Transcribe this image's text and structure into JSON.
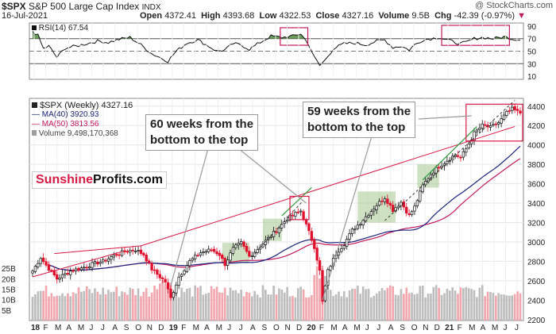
{
  "header": {
    "symbol": "$SPX",
    "name": "S&P 500 Large Cap Index",
    "exchange": "INDX",
    "date": "16-Jul-2021",
    "open_label": "Open",
    "open": "4372.41",
    "high_label": "High",
    "high": "4393.68",
    "low_label": "Low",
    "low": "4322.53",
    "close_label": "Close",
    "close": "4327.16",
    "volume_label": "Volume",
    "volume": "9.5B",
    "chg_label": "Chg",
    "chg": "-42.39 (-0.97%)",
    "watermark": "@ StockCharts.com"
  },
  "rsi": {
    "label": "RSI(14) 67.54",
    "levels": [
      "90",
      "70",
      "50",
      "30",
      "10"
    ]
  },
  "legend": {
    "main": "$SPX (Weekly) 4327.16",
    "ma40": "MA(40) 3920.93",
    "ma50": "MA(50) 3813.56",
    "volume": "Volume 9,498,170,368"
  },
  "logo": {
    "part1": "Sunshine",
    "part2": "Profits.com"
  },
  "callouts": {
    "left_line1": "60 weeks from the",
    "left_line2": "bottom to the top",
    "right_line1": "59 weeks from the",
    "right_line2": "bottom to the top"
  },
  "colors": {
    "ma40": "#1a237e",
    "ma50": "#c2185b",
    "trend": "#d81b45",
    "up_trend": "#2e9e3e",
    "highlight": "#a5c98f",
    "volume_up": "#bdbdbd",
    "volume_down": "#f2a6ae",
    "candle_down": "#e0102c"
  },
  "chart_data": {
    "type": "line",
    "title": "$SPX S&P 500 Large Cap Index INDX",
    "period": "Weekly",
    "x_tick_labels": [
      "18",
      "F",
      "M",
      "A",
      "M",
      "J",
      "J",
      "A",
      "S",
      "O",
      "N",
      "D",
      "19",
      "F",
      "M",
      "A",
      "M",
      "J",
      "J",
      "A",
      "S",
      "O",
      "N",
      "D",
      "20",
      "F",
      "M",
      "A",
      "M",
      "J",
      "J",
      "A",
      "S",
      "O",
      "N",
      "D",
      "21",
      "F",
      "M",
      "A",
      "M",
      "J",
      "J"
    ],
    "y_ticks": [
      "4400",
      "4200",
      "4000",
      "3800",
      "3600",
      "3400",
      "3200",
      "3000",
      "2800",
      "2600",
      "2400",
      "2200"
    ],
    "ylim": [
      2190,
      4480
    ],
    "volume_ticks": [
      "25B",
      "20B",
      "15B",
      "10B",
      "5B"
    ],
    "anchors_price": [
      [
        0,
        2700
      ],
      [
        3,
        2840
      ],
      [
        5,
        2760
      ],
      [
        9,
        2620
      ],
      [
        14,
        2700
      ],
      [
        18,
        2730
      ],
      [
        23,
        2780
      ],
      [
        26,
        2800
      ],
      [
        30,
        2860
      ],
      [
        34,
        2900
      ],
      [
        38,
        2920
      ],
      [
        41,
        2870
      ],
      [
        44,
        2720
      ],
      [
        47,
        2640
      ],
      [
        49,
        2590
      ],
      [
        51,
        2420
      ],
      [
        54,
        2640
      ],
      [
        58,
        2800
      ],
      [
        62,
        2890
      ],
      [
        66,
        2920
      ],
      [
        69,
        2870
      ],
      [
        71,
        2770
      ],
      [
        74,
        2930
      ],
      [
        77,
        2990
      ],
      [
        80,
        2850
      ],
      [
        82,
        2900
      ],
      [
        86,
        3010
      ],
      [
        90,
        3120
      ],
      [
        94,
        3240
      ],
      [
        97,
        3290
      ],
      [
        99,
        3320
      ],
      [
        102,
        3100
      ],
      [
        104,
        2950
      ],
      [
        106,
        2700
      ],
      [
        107,
        2380
      ],
      [
        109,
        2700
      ],
      [
        112,
        2880
      ],
      [
        115,
        2980
      ],
      [
        118,
        3120
      ],
      [
        121,
        3200
      ],
      [
        124,
        3290
      ],
      [
        127,
        3380
      ],
      [
        130,
        3460
      ],
      [
        133,
        3330
      ],
      [
        136,
        3410
      ],
      [
        139,
        3270
      ],
      [
        141,
        3360
      ],
      [
        144,
        3580
      ],
      [
        147,
        3700
      ],
      [
        150,
        3780
      ],
      [
        153,
        3840
      ],
      [
        156,
        3900
      ],
      [
        158,
        3870
      ],
      [
        160,
        3960
      ],
      [
        163,
        4120
      ],
      [
        166,
        4200
      ],
      [
        169,
        4180
      ],
      [
        172,
        4230
      ],
      [
        175,
        4330
      ],
      [
        177,
        4370
      ],
      [
        180,
        4327
      ]
    ],
    "anchors_rsi": [
      [
        0,
        82
      ],
      [
        2,
        75
      ],
      [
        4,
        54
      ],
      [
        6,
        58
      ],
      [
        9,
        40
      ],
      [
        12,
        55
      ],
      [
        16,
        58
      ],
      [
        20,
        62
      ],
      [
        24,
        66
      ],
      [
        28,
        64
      ],
      [
        32,
        69
      ],
      [
        36,
        72
      ],
      [
        40,
        60
      ],
      [
        44,
        46
      ],
      [
        47,
        40
      ],
      [
        50,
        34
      ],
      [
        53,
        50
      ],
      [
        57,
        63
      ],
      [
        61,
        68
      ],
      [
        65,
        58
      ],
      [
        68,
        50
      ],
      [
        71,
        52
      ],
      [
        74,
        62
      ],
      [
        77,
        60
      ],
      [
        80,
        53
      ],
      [
        84,
        64
      ],
      [
        88,
        74
      ],
      [
        92,
        72
      ],
      [
        96,
        74
      ],
      [
        99,
        78
      ],
      [
        102,
        60
      ],
      [
        104,
        40
      ],
      [
        106,
        27
      ],
      [
        108,
        36
      ],
      [
        111,
        54
      ],
      [
        115,
        62
      ],
      [
        119,
        63
      ],
      [
        123,
        60
      ],
      [
        127,
        66
      ],
      [
        130,
        68
      ],
      [
        133,
        56
      ],
      [
        136,
        58
      ],
      [
        139,
        52
      ],
      [
        141,
        60
      ],
      [
        144,
        68
      ],
      [
        147,
        70
      ],
      [
        150,
        72
      ],
      [
        153,
        68
      ],
      [
        156,
        64
      ],
      [
        158,
        62
      ],
      [
        160,
        64
      ],
      [
        163,
        70
      ],
      [
        166,
        72
      ],
      [
        170,
        70
      ],
      [
        174,
        73
      ],
      [
        177,
        70
      ],
      [
        180,
        67.54
      ]
    ],
    "ma40_final": 3920.93,
    "ma50_final": 3813.56
  }
}
